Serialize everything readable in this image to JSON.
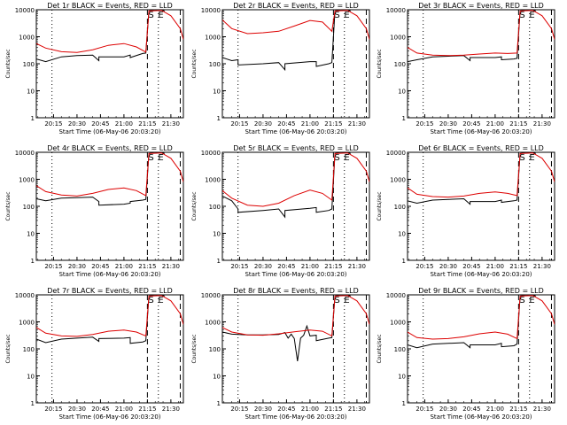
{
  "figure": {
    "panel_titles": [
      "Det 1r BLACK = Events, RED = LLD",
      "Det 2r BLACK = Events, RED = LLD",
      "Det 3r BLACK = Events, RED = LLD",
      "Det 4r BLACK = Events, RED = LLD",
      "Det 5r BLACK = Events, RED = LLD",
      "Det 6r BLACK = Events, RED = LLD",
      "Det 7r BLACK = Events, RED = LLD",
      "Det 8r BLACK = Events, RED = LLD",
      "Det 9r BLACK = Events, RED = LLD"
    ],
    "xlabel": "Start Time (06-May-06 20:03:20)",
    "ylabel": "Counts/sec",
    "x_ticks": [
      "20:15",
      "20:30",
      "20:45",
      "21:00",
      "21:15",
      "21:30"
    ],
    "y_ticks": [
      "1",
      "10",
      "100",
      "1000",
      "10000"
    ],
    "markers": [
      "S",
      "E"
    ],
    "colors": {
      "events": "#000000",
      "lld": "#dd0000"
    }
  },
  "chart_data": [
    {
      "type": "line",
      "title": "Det 1r BLACK = Events, RED = LLD",
      "xlabel": "Start Time (06-May-06 20:03:20)",
      "ylabel": "Counts/sec",
      "y_scale": "log",
      "ylim": [
        1,
        10000
      ],
      "series": [
        {
          "name": "Events",
          "color": "#000000",
          "x": [
            "20:04",
            "20:10",
            "20:20",
            "20:30",
            "20:40",
            "20:44",
            "20:44",
            "21:00",
            "21:04",
            "21:04",
            "21:12",
            "21:14",
            "21:16",
            "21:20",
            "21:24",
            "21:26"
          ],
          "values": [
            150,
            120,
            180,
            200,
            210,
            130,
            180,
            180,
            210,
            170,
            240,
            250,
            9000,
            10000,
            9800,
            9000
          ]
        },
        {
          "name": "LLD",
          "color": "#dd0000",
          "x": [
            "20:04",
            "20:10",
            "20:20",
            "20:30",
            "20:40",
            "20:50",
            "21:00",
            "21:08",
            "21:14",
            "21:16",
            "21:24",
            "21:30",
            "21:36",
            "21:38"
          ],
          "values": [
            560,
            380,
            280,
            260,
            330,
            480,
            560,
            420,
            270,
            9000,
            9500,
            6000,
            2000,
            800
          ]
        }
      ]
    },
    {
      "type": "line",
      "title": "Det 2r BLACK = Events, RED = LLD",
      "xlabel": "Start Time (06-May-06 20:03:20)",
      "ylabel": "Counts/sec",
      "y_scale": "log",
      "ylim": [
        1,
        10000
      ],
      "series": [
        {
          "name": "Events",
          "color": "#000000",
          "x": [
            "20:04",
            "20:10",
            "20:14",
            "20:14",
            "20:30",
            "20:40",
            "20:44",
            "20:44",
            "21:00",
            "21:04",
            "21:04",
            "21:12",
            "21:14",
            "21:16",
            "21:20",
            "21:24",
            "21:26"
          ],
          "values": [
            170,
            130,
            140,
            90,
            100,
            110,
            60,
            100,
            120,
            120,
            80,
            100,
            110,
            9000,
            10000,
            9800,
            9000
          ]
        },
        {
          "name": "LLD",
          "color": "#dd0000",
          "x": [
            "20:04",
            "20:10",
            "20:20",
            "20:30",
            "20:40",
            "20:50",
            "21:00",
            "21:08",
            "21:14",
            "21:16",
            "21:24",
            "21:30",
            "21:36",
            "21:38"
          ],
          "values": [
            4200,
            2000,
            1300,
            1400,
            1600,
            2500,
            4000,
            3500,
            1600,
            9000,
            9500,
            6000,
            2000,
            800
          ]
        }
      ]
    },
    {
      "type": "line",
      "title": "Det 3r BLACK = Events, RED = LLD",
      "xlabel": "Start Time (06-May-06 20:03:20)",
      "ylabel": "Counts/sec",
      "y_scale": "log",
      "ylim": [
        1,
        10000
      ],
      "series": [
        {
          "name": "Events",
          "color": "#000000",
          "x": [
            "20:04",
            "20:10",
            "20:20",
            "20:30",
            "20:40",
            "20:44",
            "20:44",
            "21:00",
            "21:04",
            "21:04",
            "21:12",
            "21:14",
            "21:16",
            "21:20",
            "21:24",
            "21:26"
          ],
          "values": [
            120,
            140,
            180,
            190,
            200,
            130,
            170,
            170,
            180,
            140,
            150,
            160,
            9000,
            10000,
            9800,
            9000
          ]
        },
        {
          "name": "LLD",
          "color": "#dd0000",
          "x": [
            "20:04",
            "20:10",
            "20:20",
            "20:30",
            "20:40",
            "20:50",
            "21:00",
            "21:08",
            "21:14",
            "21:16",
            "21:24",
            "21:30",
            "21:36",
            "21:38"
          ],
          "values": [
            400,
            250,
            210,
            200,
            210,
            230,
            250,
            240,
            250,
            9000,
            9500,
            6000,
            2000,
            800
          ]
        }
      ]
    },
    {
      "type": "line",
      "title": "Det 4r BLACK = Events, RED = LLD",
      "xlabel": "Start Time (06-May-06 20:03:20)",
      "ylabel": "Counts/sec",
      "y_scale": "log",
      "ylim": [
        1,
        10000
      ],
      "series": [
        {
          "name": "Events",
          "color": "#000000",
          "x": [
            "20:04",
            "20:10",
            "20:20",
            "20:30",
            "20:40",
            "20:44",
            "20:44",
            "21:00",
            "21:04",
            "21:04",
            "21:12",
            "21:14",
            "21:16",
            "21:20",
            "21:24",
            "21:26"
          ],
          "values": [
            190,
            160,
            200,
            210,
            220,
            150,
            110,
            120,
            130,
            150,
            170,
            180,
            9000,
            10000,
            9800,
            9000
          ]
        },
        {
          "name": "LLD",
          "color": "#dd0000",
          "x": [
            "20:04",
            "20:10",
            "20:20",
            "20:30",
            "20:40",
            "20:50",
            "21:00",
            "21:08",
            "21:14",
            "21:16",
            "21:24",
            "21:30",
            "21:36",
            "21:38"
          ],
          "values": [
            580,
            350,
            260,
            240,
            300,
            420,
            480,
            380,
            250,
            9000,
            9500,
            6000,
            2000,
            800
          ]
        }
      ]
    },
    {
      "type": "line",
      "title": "Det 5r BLACK = Events, RED = LLD",
      "xlabel": "Start Time (06-May-06 20:03:20)",
      "ylabel": "Counts/sec",
      "y_scale": "log",
      "ylim": [
        1,
        10000
      ],
      "series": [
        {
          "name": "Events",
          "color": "#000000",
          "x": [
            "20:04",
            "20:10",
            "20:14",
            "20:14",
            "20:30",
            "20:40",
            "20:44",
            "20:44",
            "21:00",
            "21:04",
            "21:04",
            "21:12",
            "21:14",
            "21:16",
            "21:20",
            "21:24",
            "21:26"
          ],
          "values": [
            240,
            160,
            80,
            60,
            70,
            80,
            40,
            70,
            85,
            90,
            60,
            70,
            80,
            9000,
            10000,
            9800,
            9000
          ]
        },
        {
          "name": "LLD",
          "color": "#dd0000",
          "x": [
            "20:04",
            "20:10",
            "20:20",
            "20:30",
            "20:40",
            "20:50",
            "21:00",
            "21:08",
            "21:14",
            "21:16",
            "21:24",
            "21:30",
            "21:36",
            "21:38"
          ],
          "values": [
            380,
            200,
            110,
            100,
            130,
            250,
            400,
            300,
            170,
            9000,
            9500,
            6000,
            2000,
            800
          ]
        }
      ]
    },
    {
      "type": "line",
      "title": "Det 6r BLACK = Events, RED = LLD",
      "xlabel": "Start Time (06-May-06 20:03:20)",
      "ylabel": "Counts/sec",
      "y_scale": "log",
      "ylim": [
        1,
        10000
      ],
      "series": [
        {
          "name": "Events",
          "color": "#000000",
          "x": [
            "20:04",
            "20:10",
            "20:20",
            "20:30",
            "20:40",
            "20:44",
            "20:44",
            "21:00",
            "21:04",
            "21:04",
            "21:12",
            "21:14",
            "21:16",
            "21:20",
            "21:24",
            "21:26"
          ],
          "values": [
            160,
            130,
            170,
            180,
            190,
            120,
            150,
            150,
            170,
            140,
            160,
            170,
            9000,
            10000,
            9800,
            9000
          ]
        },
        {
          "name": "LLD",
          "color": "#dd0000",
          "x": [
            "20:04",
            "20:10",
            "20:20",
            "20:30",
            "20:40",
            "20:50",
            "21:00",
            "21:08",
            "21:14",
            "21:16",
            "21:24",
            "21:30",
            "21:36",
            "21:38"
          ],
          "values": [
            480,
            280,
            230,
            220,
            240,
            300,
            340,
            300,
            250,
            9000,
            9500,
            6000,
            2000,
            800
          ]
        }
      ]
    },
    {
      "type": "line",
      "title": "Det 7r BLACK = Events, RED = LLD",
      "xlabel": "Start Time (06-May-06 20:03:20)",
      "ylabel": "Counts/sec",
      "y_scale": "log",
      "ylim": [
        1,
        10000
      ],
      "series": [
        {
          "name": "Events",
          "color": "#000000",
          "x": [
            "20:04",
            "20:10",
            "20:20",
            "20:30",
            "20:40",
            "20:44",
            "20:44",
            "21:00",
            "21:04",
            "21:04",
            "21:12",
            "21:14",
            "21:16",
            "21:20",
            "21:24",
            "21:26"
          ],
          "values": [
            230,
            170,
            230,
            250,
            270,
            190,
            240,
            250,
            260,
            160,
            180,
            200,
            9000,
            10000,
            9800,
            9000
          ]
        },
        {
          "name": "LLD",
          "color": "#dd0000",
          "x": [
            "20:04",
            "20:10",
            "20:20",
            "20:30",
            "20:40",
            "20:50",
            "21:00",
            "21:08",
            "21:14",
            "21:16",
            "21:24",
            "21:30",
            "21:36",
            "21:38"
          ],
          "values": [
            620,
            380,
            300,
            290,
            340,
            450,
            500,
            420,
            300,
            9000,
            9500,
            6000,
            2000,
            800
          ]
        }
      ]
    },
    {
      "type": "line",
      "title": "Det 8r BLACK = Events, RED = LLD",
      "xlabel": "Start Time (06-May-06 20:03:20)",
      "ylabel": "Counts/sec",
      "y_scale": "log",
      "ylim": [
        1,
        10000
      ],
      "series": [
        {
          "name": "Events",
          "color": "#000000",
          "x": [
            "20:04",
            "20:10",
            "20:20",
            "20:30",
            "20:40",
            "20:44",
            "20:46",
            "20:48",
            "20:50",
            "20:52",
            "20:54",
            "20:56",
            "20:58",
            "21:00",
            "21:04",
            "21:04",
            "21:12",
            "21:14",
            "21:16",
            "21:20",
            "21:24",
            "21:26"
          ],
          "values": [
            420,
            350,
            330,
            330,
            340,
            400,
            250,
            350,
            240,
            35,
            250,
            320,
            700,
            300,
            320,
            200,
            250,
            260,
            9000,
            10000,
            9800,
            9000
          ]
        },
        {
          "name": "LLD",
          "color": "#dd0000",
          "x": [
            "20:04",
            "20:10",
            "20:20",
            "20:30",
            "20:40",
            "20:50",
            "21:00",
            "21:08",
            "21:14",
            "21:16",
            "21:24",
            "21:30",
            "21:36",
            "21:38"
          ],
          "values": [
            620,
            420,
            330,
            320,
            360,
            430,
            500,
            450,
            300,
            9000,
            9500,
            6000,
            2000,
            800
          ]
        }
      ]
    },
    {
      "type": "line",
      "title": "Det 9r BLACK = Events, RED = LLD",
      "xlabel": "Start Time (06-May-06 20:03:20)",
      "ylabel": "Counts/sec",
      "y_scale": "log",
      "ylim": [
        1,
        10000
      ],
      "series": [
        {
          "name": "Events",
          "color": "#000000",
          "x": [
            "20:04",
            "20:10",
            "20:20",
            "20:30",
            "20:40",
            "20:44",
            "20:44",
            "21:00",
            "21:04",
            "21:04",
            "21:12",
            "21:14",
            "21:16",
            "21:20",
            "21:24",
            "21:26"
          ],
          "values": [
            140,
            110,
            150,
            160,
            170,
            110,
            140,
            140,
            160,
            120,
            130,
            150,
            9000,
            10000,
            9800,
            9000
          ]
        },
        {
          "name": "LLD",
          "color": "#dd0000",
          "x": [
            "20:04",
            "20:10",
            "20:20",
            "20:30",
            "20:40",
            "20:50",
            "21:00",
            "21:08",
            "21:14",
            "21:16",
            "21:24",
            "21:30",
            "21:36",
            "21:38"
          ],
          "values": [
            420,
            260,
            230,
            240,
            280,
            360,
            420,
            350,
            240,
            9000,
            9500,
            6000,
            2000,
            800
          ]
        }
      ]
    }
  ]
}
